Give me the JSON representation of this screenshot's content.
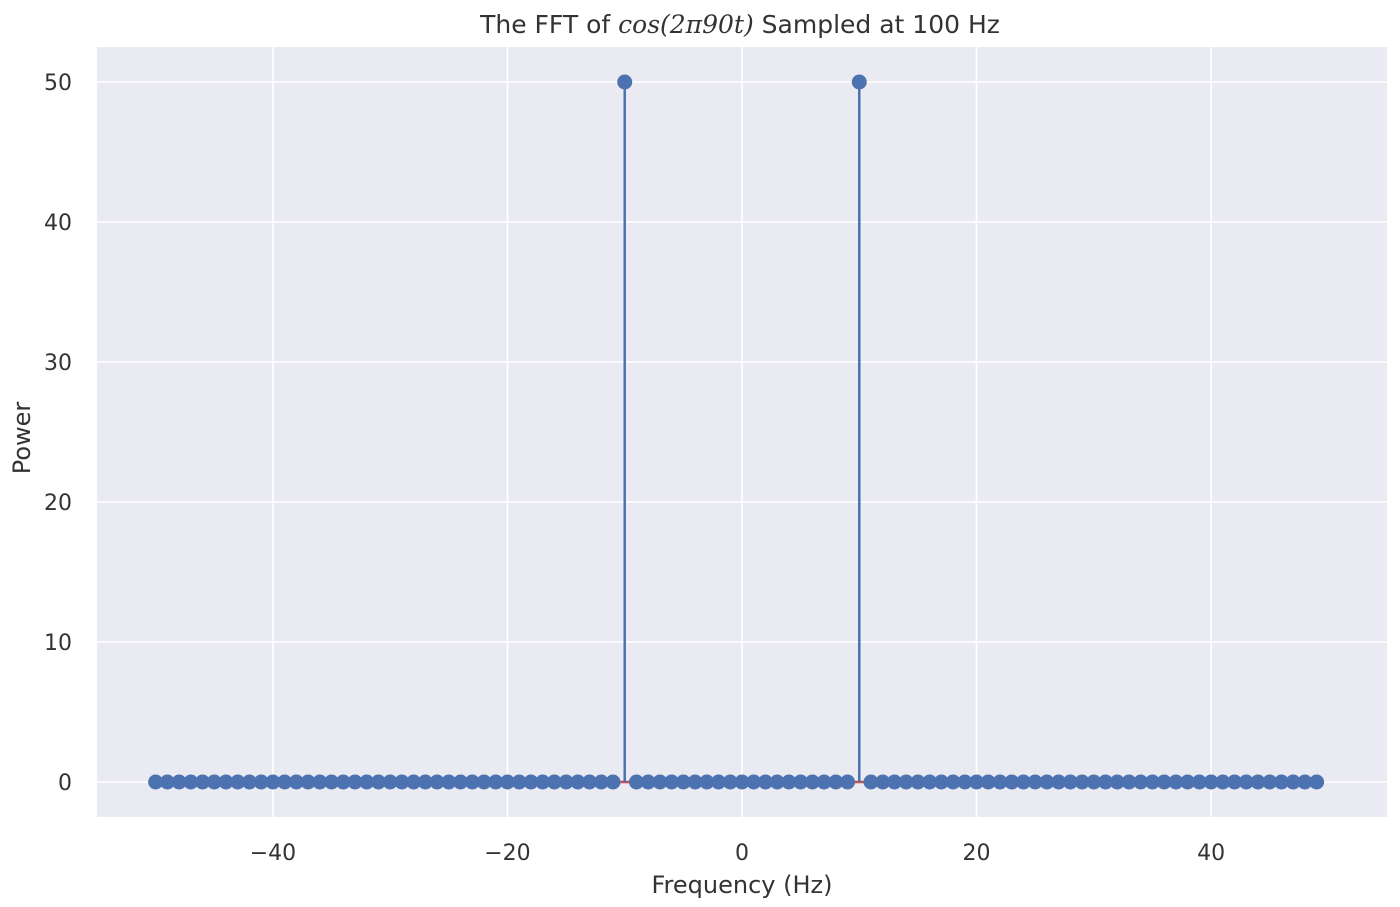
{
  "chart_data": {
    "type": "stem",
    "title": {
      "prefix": "The FFT of ",
      "math": "cos(2π90t)",
      "suffix": " Sampled at 100 Hz"
    },
    "xlabel": "Frequency (Hz)",
    "ylabel": "Power",
    "xlim": [
      -55,
      55
    ],
    "ylim": [
      -2.5,
      52.5
    ],
    "xticks": [
      -40,
      -20,
      0,
      20,
      40
    ],
    "xtick_labels": [
      "−40",
      "−20",
      "0",
      "20",
      "40"
    ],
    "yticks": [
      0,
      10,
      20,
      30,
      40,
      50
    ],
    "ytick_labels": [
      "0",
      "10",
      "20",
      "30",
      "40",
      "50"
    ],
    "grid": true,
    "legend": "none",
    "background_color": "#eaeaf2",
    "series": [
      {
        "stem_color": "#4c72b0",
        "marker_color": "#4c72b0",
        "baseline_color": "#c44e52",
        "x": [
          -50,
          -49,
          -48,
          -47,
          -46,
          -45,
          -44,
          -43,
          -42,
          -41,
          -40,
          -39,
          -38,
          -37,
          -36,
          -35,
          -34,
          -33,
          -32,
          -31,
          -30,
          -29,
          -28,
          -27,
          -26,
          -25,
          -24,
          -23,
          -22,
          -21,
          -20,
          -19,
          -18,
          -17,
          -16,
          -15,
          -14,
          -13,
          -12,
          -11,
          -10,
          -9,
          -8,
          -7,
          -6,
          -5,
          -4,
          -3,
          -2,
          -1,
          0,
          1,
          2,
          3,
          4,
          5,
          6,
          7,
          8,
          9,
          10,
          11,
          12,
          13,
          14,
          15,
          16,
          17,
          18,
          19,
          20,
          21,
          22,
          23,
          24,
          25,
          26,
          27,
          28,
          29,
          30,
          31,
          32,
          33,
          34,
          35,
          36,
          37,
          38,
          39,
          40,
          41,
          42,
          43,
          44,
          45,
          46,
          47,
          48,
          49
        ],
        "y": [
          0,
          0,
          0,
          0,
          0,
          0,
          0,
          0,
          0,
          0,
          0,
          0,
          0,
          0,
          0,
          0,
          0,
          0,
          0,
          0,
          0,
          0,
          0,
          0,
          0,
          0,
          0,
          0,
          0,
          0,
          0,
          0,
          0,
          0,
          0,
          0,
          0,
          0,
          0,
          0,
          50,
          0,
          0,
          0,
          0,
          0,
          0,
          0,
          0,
          0,
          0,
          0,
          0,
          0,
          0,
          0,
          0,
          0,
          0,
          0,
          50,
          0,
          0,
          0,
          0,
          0,
          0,
          0,
          0,
          0,
          0,
          0,
          0,
          0,
          0,
          0,
          0,
          0,
          0,
          0,
          0,
          0,
          0,
          0,
          0,
          0,
          0,
          0,
          0,
          0,
          0,
          0,
          0,
          0,
          0,
          0,
          0,
          0,
          0,
          0
        ]
      }
    ]
  }
}
